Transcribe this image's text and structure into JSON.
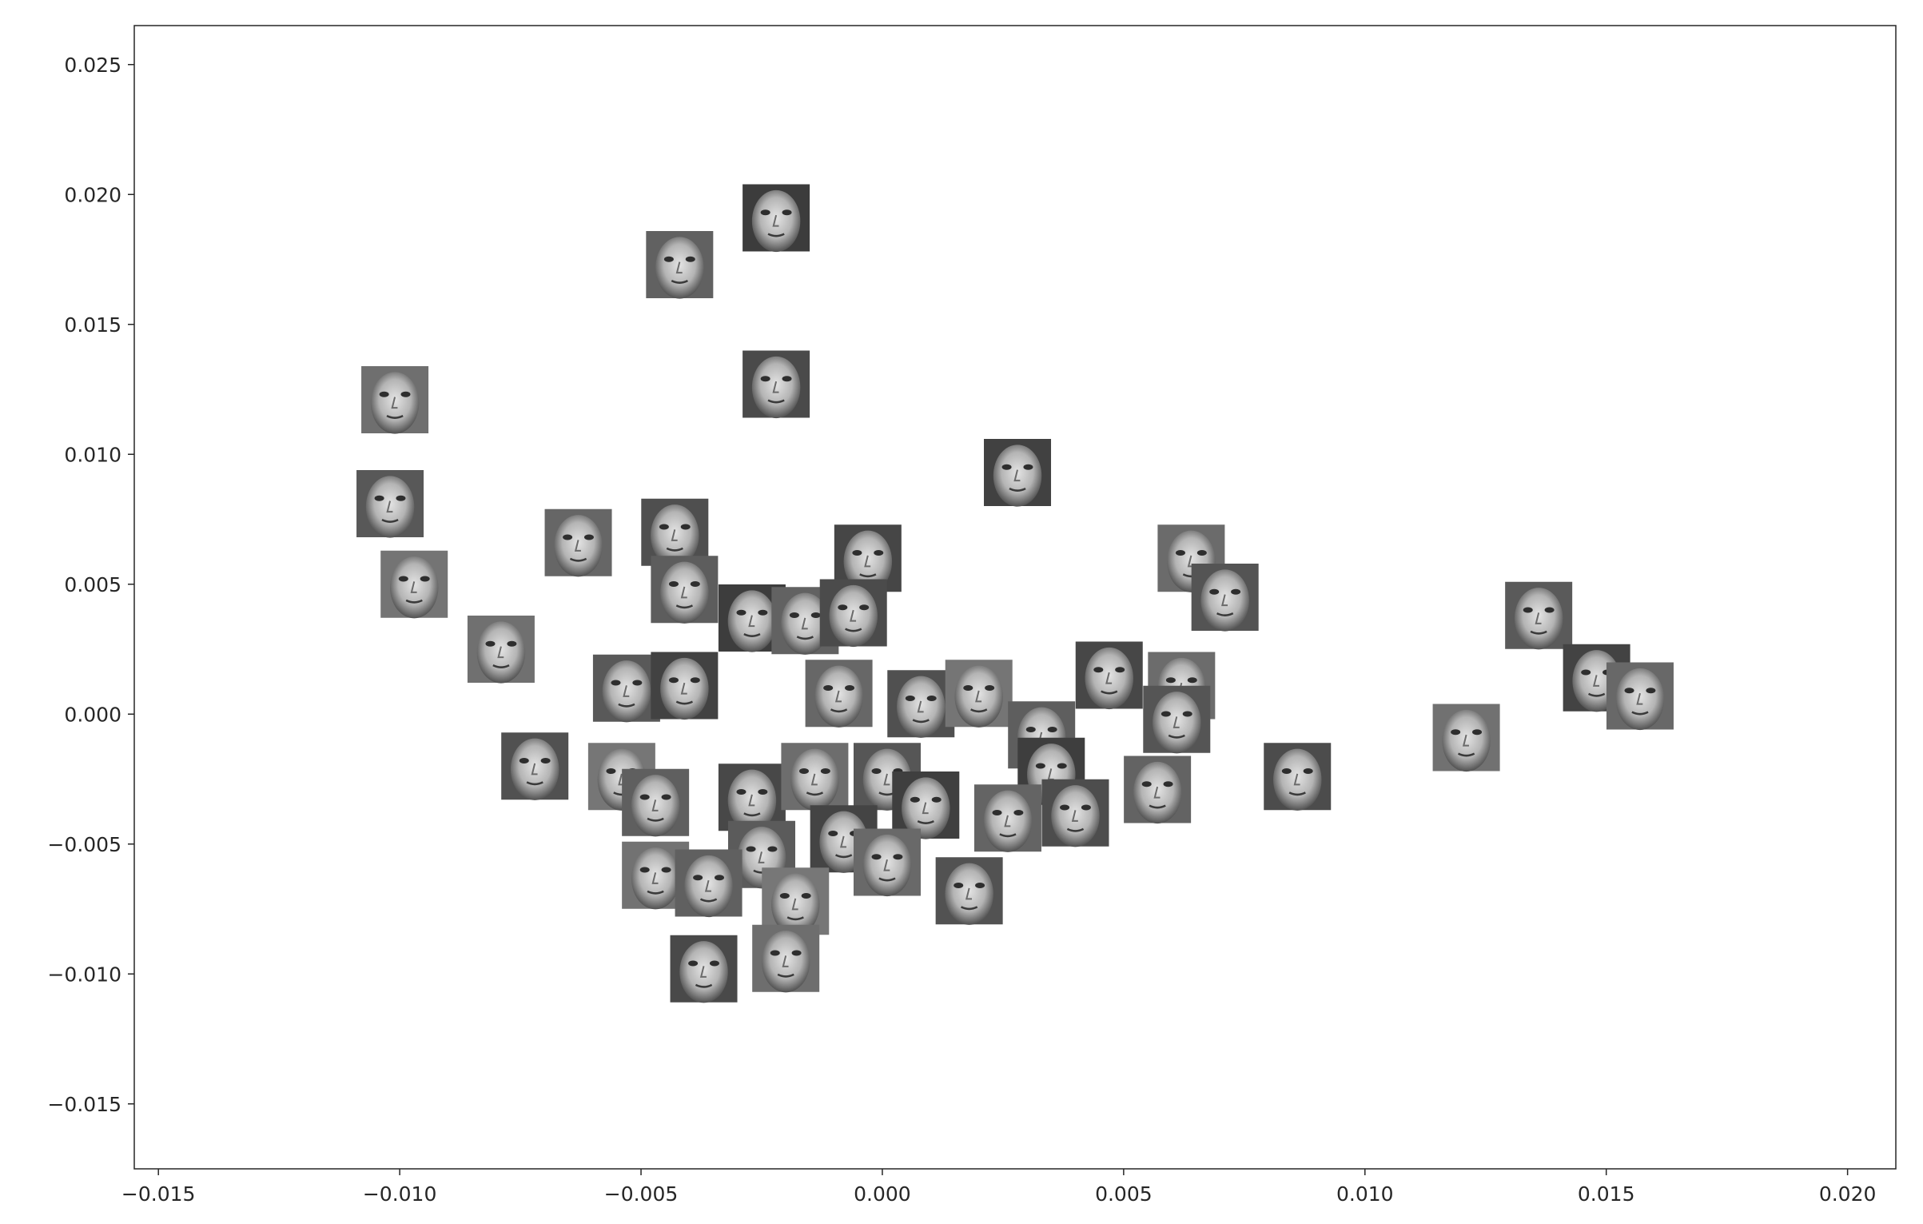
{
  "chart_data": {
    "type": "scatter",
    "title": "",
    "xlabel": "",
    "ylabel": "",
    "xlim": [
      -0.0155,
      0.021
    ],
    "ylim": [
      -0.0175,
      0.0265
    ],
    "grid": false,
    "legend": "none",
    "marker_style": "grayscale face thumbnail images",
    "xticks": [
      {
        "value": -0.015,
        "label": "−0.015"
      },
      {
        "value": -0.01,
        "label": "−0.010"
      },
      {
        "value": -0.005,
        "label": "−0.005"
      },
      {
        "value": 0.0,
        "label": "0.000"
      },
      {
        "value": 0.005,
        "label": "0.005"
      },
      {
        "value": 0.01,
        "label": "0.010"
      },
      {
        "value": 0.015,
        "label": "0.015"
      },
      {
        "value": 0.02,
        "label": "0.020"
      }
    ],
    "yticks": [
      {
        "value": -0.015,
        "label": "−0.015"
      },
      {
        "value": -0.01,
        "label": "−0.010"
      },
      {
        "value": -0.005,
        "label": "−0.005"
      },
      {
        "value": 0.0,
        "label": "0.000"
      },
      {
        "value": 0.005,
        "label": "0.005"
      },
      {
        "value": 0.01,
        "label": "0.010"
      },
      {
        "value": 0.015,
        "label": "0.015"
      },
      {
        "value": 0.02,
        "label": "0.020"
      },
      {
        "value": 0.025,
        "label": "0.025"
      }
    ],
    "points": [
      {
        "x": -0.0022,
        "y": 0.0191
      },
      {
        "x": -0.0042,
        "y": 0.0173
      },
      {
        "x": -0.0022,
        "y": 0.0127
      },
      {
        "x": -0.0101,
        "y": 0.0121
      },
      {
        "x": -0.0102,
        "y": 0.0081
      },
      {
        "x": 0.0028,
        "y": 0.0093
      },
      {
        "x": -0.0063,
        "y": 0.0066
      },
      {
        "x": -0.0043,
        "y": 0.007
      },
      {
        "x": -0.0097,
        "y": 0.005
      },
      {
        "x": -0.0041,
        "y": 0.0048
      },
      {
        "x": -0.0003,
        "y": 0.006
      },
      {
        "x": 0.0064,
        "y": 0.006
      },
      {
        "x": 0.0071,
        "y": 0.0045
      },
      {
        "x": -0.0027,
        "y": 0.0037
      },
      {
        "x": -0.0016,
        "y": 0.0036
      },
      {
        "x": -0.0006,
        "y": 0.0039
      },
      {
        "x": -0.0079,
        "y": 0.0025
      },
      {
        "x": -0.0053,
        "y": 0.001
      },
      {
        "x": -0.0041,
        "y": 0.0011
      },
      {
        "x": -0.0009,
        "y": 0.0008
      },
      {
        "x": 0.0008,
        "y": 0.0004
      },
      {
        "x": 0.002,
        "y": 0.0008
      },
      {
        "x": 0.0033,
        "y": -0.0008
      },
      {
        "x": 0.0047,
        "y": 0.0015
      },
      {
        "x": 0.0062,
        "y": 0.0011
      },
      {
        "x": 0.0061,
        "y": -0.0002
      },
      {
        "x": 0.0035,
        "y": -0.0022
      },
      {
        "x": 0.0057,
        "y": -0.0029
      },
      {
        "x": 0.0086,
        "y": -0.0024
      },
      {
        "x": 0.0121,
        "y": -0.0009
      },
      {
        "x": 0.0136,
        "y": 0.0038
      },
      {
        "x": 0.0148,
        "y": 0.0014
      },
      {
        "x": 0.0157,
        "y": 0.0007
      },
      {
        "x": -0.0072,
        "y": -0.002
      },
      {
        "x": -0.0054,
        "y": -0.0024
      },
      {
        "x": -0.0047,
        "y": -0.0034
      },
      {
        "x": -0.0027,
        "y": -0.0032
      },
      {
        "x": -0.0014,
        "y": -0.0024
      },
      {
        "x": 0.0001,
        "y": -0.0024
      },
      {
        "x": 0.0009,
        "y": -0.0035
      },
      {
        "x": 0.0026,
        "y": -0.004
      },
      {
        "x": 0.004,
        "y": -0.0038
      },
      {
        "x": -0.0047,
        "y": -0.0062
      },
      {
        "x": -0.0025,
        "y": -0.0054
      },
      {
        "x": -0.0008,
        "y": -0.0048
      },
      {
        "x": 0.0001,
        "y": -0.0057
      },
      {
        "x": 0.0018,
        "y": -0.0068
      },
      {
        "x": -0.0018,
        "y": -0.0072
      },
      {
        "x": -0.0036,
        "y": -0.0065
      },
      {
        "x": -0.0037,
        "y": -0.0098
      },
      {
        "x": -0.002,
        "y": -0.0094
      }
    ]
  }
}
